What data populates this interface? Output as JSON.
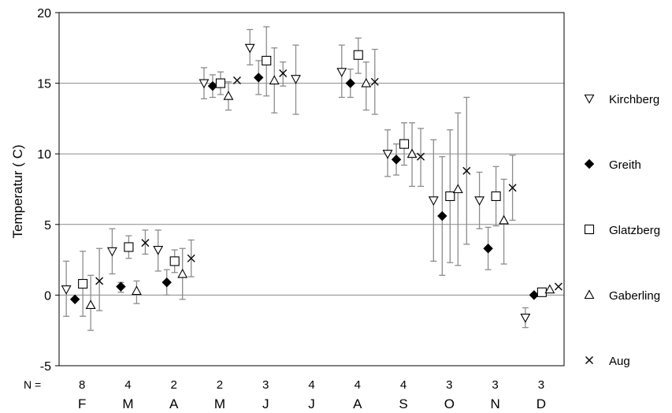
{
  "chart_data": {
    "type": "scatter",
    "title": "",
    "ylabel": "Temperatur ( C)",
    "xlabel": "",
    "ylim": [
      -5,
      20
    ],
    "yticks": [
      -5,
      0,
      5,
      10,
      15,
      20
    ],
    "grid": true,
    "legend_position": "right",
    "n_label": "N =",
    "categories": [
      "F",
      "M",
      "A",
      "M",
      "J",
      "J",
      "A",
      "S",
      "O",
      "N",
      "D"
    ],
    "n_values": [
      "8",
      "4",
      "2",
      "2",
      "3",
      "4",
      "4",
      "4",
      "3",
      "3",
      "3"
    ],
    "series": [
      {
        "name": "Kirchberg",
        "marker": "triangle-down",
        "points": [
          {
            "x": "F",
            "mean": 0.4,
            "low": -1.5,
            "high": 2.4
          },
          {
            "x": "M",
            "mean": 3.1,
            "low": 1.5,
            "high": 4.7
          },
          {
            "x": "A",
            "mean": 3.2,
            "low": 1.7,
            "high": 4.6
          },
          {
            "x": "M",
            "mean": 15.0,
            "low": 13.9,
            "high": 16.1
          },
          {
            "x": "J",
            "mean": 17.5,
            "low": 16.3,
            "high": 18.8
          },
          {
            "x": "J",
            "mean": 15.3,
            "low": 12.8,
            "high": 17.7
          },
          {
            "x": "A",
            "mean": 15.8,
            "low": 14.0,
            "high": 17.7
          },
          {
            "x": "S",
            "mean": 10.0,
            "low": 8.4,
            "high": 11.7
          },
          {
            "x": "O",
            "mean": 6.7,
            "low": 2.4,
            "high": 11.0
          },
          {
            "x": "N",
            "mean": 6.7,
            "low": 4.7,
            "high": 8.7
          },
          {
            "x": "D",
            "mean": -1.6,
            "low": -2.3,
            "high": -0.9
          }
        ]
      },
      {
        "name": "Greith",
        "marker": "diamond",
        "points": [
          {
            "x": "F",
            "mean": -0.3,
            "low": null,
            "high": null
          },
          {
            "x": "M",
            "mean": 0.6,
            "low": 0.2,
            "high": 0.9
          },
          {
            "x": "A",
            "mean": 0.9,
            "low": 0.0,
            "high": 1.8
          },
          {
            "x": "M",
            "mean": 14.8,
            "low": 14.0,
            "high": 15.6
          },
          {
            "x": "J",
            "mean": 15.4,
            "low": 14.2,
            "high": 16.6
          },
          {
            "x": "A",
            "mean": 15.0,
            "low": 14.0,
            "high": 16.0
          },
          {
            "x": "S",
            "mean": 9.6,
            "low": 8.5,
            "high": 10.7
          },
          {
            "x": "O",
            "mean": 5.6,
            "low": 1.4,
            "high": 9.8
          },
          {
            "x": "N",
            "mean": 3.3,
            "low": 1.8,
            "high": 4.8
          },
          {
            "x": "D",
            "mean": 0.0,
            "low": null,
            "high": null
          }
        ]
      },
      {
        "name": "Glatzberg",
        "marker": "square",
        "points": [
          {
            "x": "F",
            "mean": 0.8,
            "low": -1.5,
            "high": 3.1
          },
          {
            "x": "M",
            "mean": 3.4,
            "low": 2.6,
            "high": 4.2
          },
          {
            "x": "A",
            "mean": 2.4,
            "low": 1.6,
            "high": 3.2
          },
          {
            "x": "M",
            "mean": 15.0,
            "low": 14.2,
            "high": 15.8
          },
          {
            "x": "J",
            "mean": 16.6,
            "low": 14.1,
            "high": 19.0
          },
          {
            "x": "A",
            "mean": 17.0,
            "low": 15.7,
            "high": 18.2
          },
          {
            "x": "S",
            "mean": 10.7,
            "low": 9.2,
            "high": 12.2
          },
          {
            "x": "O",
            "mean": 7.0,
            "low": 2.3,
            "high": 11.7
          },
          {
            "x": "N",
            "mean": 7.0,
            "low": 4.9,
            "high": 9.1
          },
          {
            "x": "D",
            "mean": 0.2,
            "low": null,
            "high": null
          }
        ]
      },
      {
        "name": "Gaberling",
        "marker": "triangle-up",
        "points": [
          {
            "x": "F",
            "mean": -0.7,
            "low": -2.5,
            "high": 1.4
          },
          {
            "x": "M",
            "mean": 0.3,
            "low": -0.6,
            "high": 1.0
          },
          {
            "x": "A",
            "mean": 1.5,
            "low": -0.3,
            "high": 3.3
          },
          {
            "x": "M",
            "mean": 14.1,
            "low": 13.1,
            "high": 15.1
          },
          {
            "x": "J",
            "mean": 15.2,
            "low": 12.9,
            "high": 17.5
          },
          {
            "x": "A",
            "mean": 15.0,
            "low": 13.1,
            "high": 16.5
          },
          {
            "x": "S",
            "mean": 10.0,
            "low": 7.7,
            "high": 12.2
          },
          {
            "x": "O",
            "mean": 7.5,
            "low": 2.1,
            "high": 12.9
          },
          {
            "x": "N",
            "mean": 5.3,
            "low": 2.2,
            "high": 8.2
          },
          {
            "x": "D",
            "mean": 0.4,
            "low": null,
            "high": null
          }
        ]
      },
      {
        "name": "Aug",
        "marker": "x",
        "points": [
          {
            "x": "F",
            "mean": 1.0,
            "low": -1.1,
            "high": 3.3
          },
          {
            "x": "M",
            "mean": 3.7,
            "low": 2.9,
            "high": 4.6
          },
          {
            "x": "A",
            "mean": 2.6,
            "low": 1.3,
            "high": 3.9
          },
          {
            "x": "M",
            "mean": 15.2,
            "low": null,
            "high": null
          },
          {
            "x": "J",
            "mean": 15.7,
            "low": 14.8,
            "high": 16.5
          },
          {
            "x": "A",
            "mean": 15.1,
            "low": 12.8,
            "high": 17.4
          },
          {
            "x": "S",
            "mean": 9.8,
            "low": 7.7,
            "high": 11.8
          },
          {
            "x": "O",
            "mean": 8.8,
            "low": 3.6,
            "high": 14.0
          },
          {
            "x": "N",
            "mean": 7.6,
            "low": 5.3,
            "high": 9.9
          },
          {
            "x": "D",
            "mean": 0.6,
            "low": null,
            "high": null
          }
        ]
      }
    ]
  }
}
